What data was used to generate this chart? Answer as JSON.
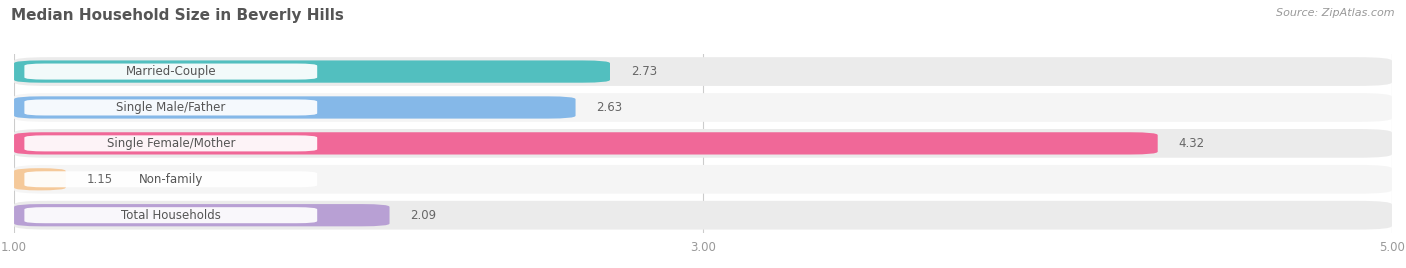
{
  "title": "Median Household Size in Beverly Hills",
  "source": "Source: ZipAtlas.com",
  "categories": [
    "Married-Couple",
    "Single Male/Father",
    "Single Female/Mother",
    "Non-family",
    "Total Households"
  ],
  "values": [
    2.73,
    2.63,
    4.32,
    1.15,
    2.09
  ],
  "bar_colors": [
    "#52bfbf",
    "#85b8e8",
    "#f06898",
    "#f5c99a",
    "#b8a0d4"
  ],
  "row_bg_color": "#ebebeb",
  "row_bg_alt": "#f5f5f5",
  "xmin": 1.0,
  "xmax": 5.0,
  "xticks": [
    1.0,
    3.0,
    5.0
  ],
  "title_fontsize": 11,
  "label_fontsize": 8.5,
  "value_fontsize": 8.5,
  "source_fontsize": 8,
  "background_color": "#ffffff",
  "value_colors": [
    "#666666",
    "#666666",
    "#ffffff",
    "#666666",
    "#666666"
  ]
}
